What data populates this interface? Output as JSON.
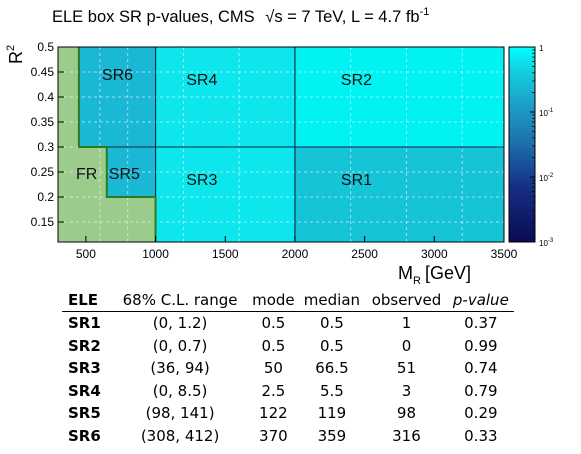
{
  "chart_data": {
    "type": "heatmap",
    "title": "ELE box SR p-values, CMS",
    "title_sqrt_s": "s = 7 TeV",
    "title_lumi": "L = 4.7 fb",
    "title_lumi_exp": "-1",
    "xlabel": "M",
    "xlabel_sub": "R",
    "xlabel_unit": "[GeV]",
    "ylabel": "R",
    "ylabel_sup": "2",
    "xlim": [
      300,
      3500
    ],
    "ylim": [
      0.11,
      0.5
    ],
    "x_ticks": [
      "500",
      "1000",
      "1500",
      "2000",
      "2500",
      "3000",
      "3500"
    ],
    "x_tick_values": [
      500,
      1000,
      1500,
      2000,
      2500,
      3000,
      3500
    ],
    "y_ticks": [
      "0.15",
      "0.2",
      "0.25",
      "0.3",
      "0.35",
      "0.4",
      "0.45",
      "0.5"
    ],
    "y_tick_values": [
      0.15,
      0.2,
      0.25,
      0.3,
      0.35,
      0.4,
      0.45,
      0.5
    ],
    "colorbar": {
      "scale": "log",
      "range": [
        0.001,
        1
      ],
      "ticks": [
        "1",
        "10",
        "10",
        "10"
      ],
      "tick_exps": [
        "",
        "-1",
        "-2",
        "-3"
      ],
      "tick_values": [
        1,
        0.1,
        0.01,
        0.001
      ]
    },
    "regions": [
      {
        "name": "SR1",
        "x": [
          2000,
          3500
        ],
        "y": [
          0.11,
          0.3
        ],
        "p_value": 0.37,
        "color": "#16c4d8"
      },
      {
        "name": "SR2",
        "x": [
          2000,
          3500
        ],
        "y": [
          0.3,
          0.5
        ],
        "p_value": 0.99,
        "color": "#00f2f2"
      },
      {
        "name": "SR3",
        "x": [
          1000,
          2000
        ],
        "y": [
          0.11,
          0.3
        ],
        "p_value": 0.74,
        "color": "#0ce6ec"
      },
      {
        "name": "SR4",
        "x": [
          1000,
          2000
        ],
        "y": [
          0.3,
          0.5
        ],
        "p_value": 0.79,
        "color": "#0ce6ec"
      },
      {
        "name": "SR5",
        "x": [
          650,
          1000
        ],
        "y": [
          0.2,
          0.3
        ],
        "p_value": 0.29,
        "color": "#1ab8d4"
      },
      {
        "name": "SR6",
        "x": [
          450,
          1000
        ],
        "y": [
          0.3,
          0.5
        ],
        "p_value": 0.33,
        "color": "#1ab8d4"
      }
    ],
    "fr_label": "FR",
    "fr_color": "#9ccc8c"
  },
  "table": {
    "headers": [
      "ELE",
      "68% C.L. range",
      "mode",
      "median",
      "observed",
      "p-value"
    ],
    "rows": [
      [
        "SR1",
        "(0, 1.2)",
        "0.5",
        "0.5",
        "1",
        "0.37"
      ],
      [
        "SR2",
        "(0, 0.7)",
        "0.5",
        "0.5",
        "0",
        "0.99"
      ],
      [
        "SR3",
        "(36, 94)",
        "50",
        "66.5",
        "51",
        "0.74"
      ],
      [
        "SR4",
        "(0, 8.5)",
        "2.5",
        "5.5",
        "3",
        "0.79"
      ],
      [
        "SR5",
        "(98, 141)",
        "122",
        "119",
        "98",
        "0.29"
      ],
      [
        "SR6",
        "(308, 412)",
        "370",
        "359",
        "316",
        "0.33"
      ]
    ]
  }
}
